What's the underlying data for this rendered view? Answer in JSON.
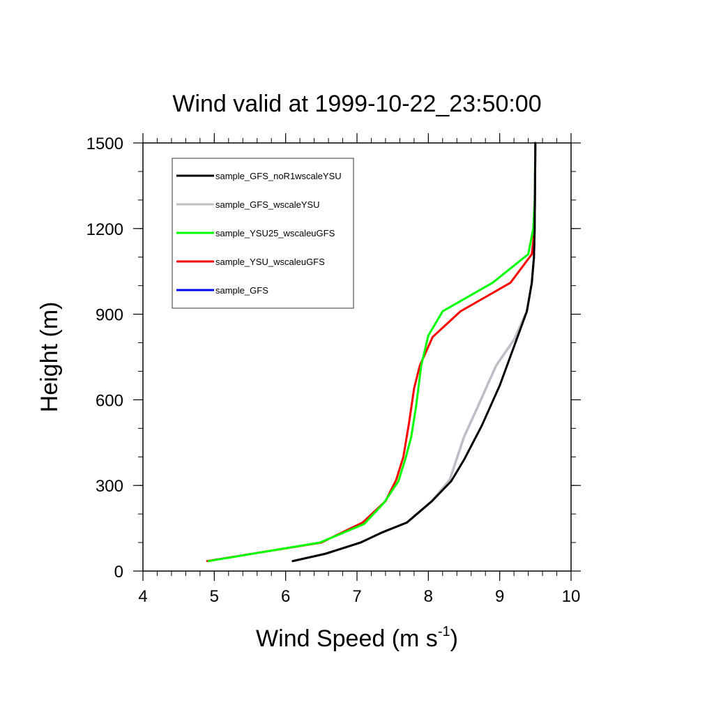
{
  "chart_data": {
    "type": "line",
    "title": "Wind valid at 1999-10-22_23:50:00",
    "xlabel": "Wind Speed (m s",
    "xlabel_sup": "-1",
    "xlabel_close": ")",
    "ylabel": "Height (m)",
    "xlim": [
      4,
      10
    ],
    "ylim": [
      0,
      1500
    ],
    "xticks": [
      "4",
      "5",
      "6",
      "7",
      "8",
      "9",
      "10"
    ],
    "yticks": [
      "0",
      "300",
      "600",
      "900",
      "1200",
      "1500"
    ],
    "grid": false,
    "legend_position": "top-left",
    "series": [
      {
        "name": "sample_GFS",
        "color": "#0000ff",
        "x": [
          6.1,
          6.55,
          7.05,
          7.35,
          7.7,
          8.05,
          8.3,
          8.5,
          8.7,
          8.95,
          9.2,
          9.38,
          9.45,
          9.48,
          9.49,
          9.5
        ],
        "y": [
          35,
          60,
          100,
          135,
          170,
          245,
          320,
          470,
          580,
          720,
          810,
          910,
          1010,
          1100,
          1200,
          1500
        ]
      },
      {
        "name": "sample_YSU_wscaleuGFS",
        "color": "#ff0000",
        "x": [
          4.9,
          6.5,
          7.08,
          7.4,
          7.55,
          7.65,
          7.73,
          7.8,
          7.88,
          8.06,
          8.45,
          9.15,
          9.45,
          9.49,
          9.5
        ],
        "y": [
          35,
          100,
          170,
          245,
          320,
          400,
          520,
          640,
          720,
          820,
          910,
          1010,
          1110,
          1200,
          1500
        ]
      },
      {
        "name": "sample_YSU25_wscaleuGFS",
        "color": "#00ff00",
        "x": [
          4.92,
          6.48,
          7.1,
          7.38,
          7.58,
          7.68,
          7.76,
          7.83,
          7.9,
          8.0,
          8.2,
          8.9,
          9.4,
          9.47,
          9.49,
          9.5
        ],
        "y": [
          35,
          100,
          165,
          240,
          315,
          395,
          470,
          580,
          720,
          825,
          910,
          1010,
          1110,
          1200,
          1300,
          1500
        ]
      },
      {
        "name": "sample_GFS_wscaleYSU",
        "color": "#c0c0c0",
        "x": [
          6.1,
          6.55,
          7.05,
          7.35,
          7.7,
          8.05,
          8.3,
          8.5,
          8.7,
          8.95,
          9.2,
          9.38,
          9.45,
          9.48,
          9.49,
          9.5
        ],
        "y": [
          35,
          60,
          100,
          135,
          170,
          245,
          320,
          470,
          580,
          720,
          810,
          910,
          1010,
          1100,
          1200,
          1500
        ]
      },
      {
        "name": "sample_GFS_noR1wscaleYSU",
        "color": "#000000",
        "x": [
          6.1,
          6.55,
          7.05,
          7.35,
          7.7,
          8.05,
          8.32,
          8.5,
          8.75,
          9.0,
          9.22,
          9.38,
          9.45,
          9.48,
          9.49,
          9.5
        ],
        "y": [
          35,
          60,
          100,
          135,
          170,
          245,
          315,
          390,
          510,
          650,
          800,
          910,
          1010,
          1100,
          1200,
          1500
        ]
      }
    ],
    "legend_order": [
      "sample_GFS_noR1wscaleYSU",
      "sample_GFS_wscaleYSU",
      "sample_YSU25_wscaleuGFS",
      "sample_YSU_wscaleuGFS",
      "sample_GFS"
    ]
  }
}
